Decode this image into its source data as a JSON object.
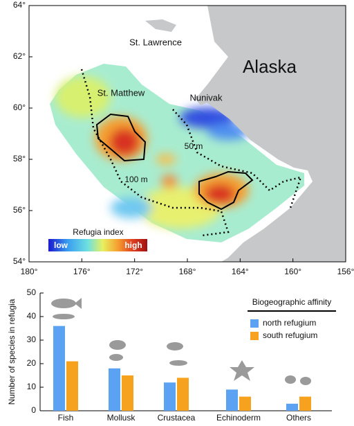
{
  "chart_data": [
    {
      "type": "map",
      "labels": {
        "island_north": "St. Lawrence",
        "region": "Alaska",
        "island_west": "St. Matthew",
        "island_east": "Nunivak",
        "depth_50": "50 m",
        "depth_100": "100 m"
      },
      "colorbar": {
        "title": "Refugia index",
        "low": "low",
        "high": "high"
      },
      "xlim": [
        180,
        156
      ],
      "xticks": [
        {
          "value": 180,
          "label": "180°"
        },
        {
          "value": 176,
          "label": "176°"
        },
        {
          "value": 172,
          "label": "172°"
        },
        {
          "value": 168,
          "label": "168°"
        },
        {
          "value": 164,
          "label": "164°"
        },
        {
          "value": 160,
          "label": "160°"
        },
        {
          "value": 156,
          "label": "156°"
        }
      ],
      "ylim": [
        54,
        64
      ],
      "yticks": [
        {
          "value": 54,
          "label": "54°"
        },
        {
          "value": 56,
          "label": "56°"
        },
        {
          "value": 58,
          "label": "58°"
        },
        {
          "value": 60,
          "label": "60°"
        },
        {
          "value": 62,
          "label": "62°"
        },
        {
          "value": 64,
          "label": "64°"
        }
      ]
    },
    {
      "type": "bar",
      "y_label": "Number of species in refugia",
      "legend_title": "Biogeographic affinity",
      "categories": [
        "Fish",
        "Mollusk",
        "Crustacea",
        "Echinoderm",
        "Others"
      ],
      "series": [
        {
          "name": "north refugium",
          "color": "#5ba3f2",
          "values": [
            36,
            18,
            12,
            9,
            3
          ]
        },
        {
          "name": "south refugium",
          "color": "#f7a21e",
          "values": [
            21,
            15,
            14,
            6,
            6
          ]
        }
      ],
      "ylim": [
        0,
        50
      ],
      "yticks": [
        0,
        10,
        20,
        30,
        40,
        50
      ]
    }
  ]
}
